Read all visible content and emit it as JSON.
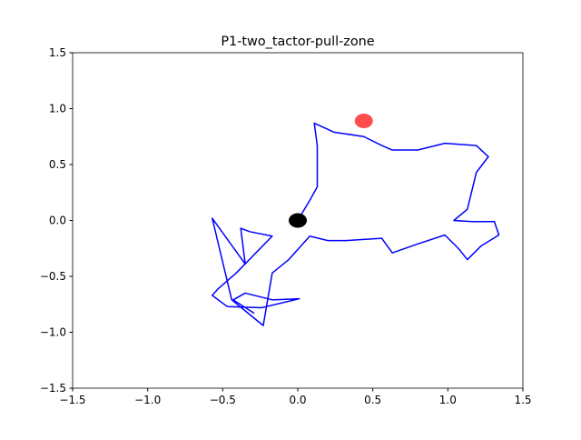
{
  "chart_data": {
    "type": "line",
    "title": "P1-two_tactor-pull-zone",
    "series": [
      {
        "color": "#0000ff",
        "x": [
          0,
          0.08,
          0.13,
          0.13,
          0.11,
          0.24,
          0.44,
          0.56,
          0.63,
          0.8,
          0.98,
          1.19,
          1.27,
          1.19,
          1.13,
          1.04,
          1.16,
          1.31,
          1.34,
          1.22,
          1.13,
          1.07,
          0.98,
          0.8,
          0.63,
          0.56,
          0.32,
          0.2,
          0.08,
          -0.06,
          -0.17,
          -0.23,
          -0.44,
          -0.57,
          -0.35,
          -0.38,
          -0.32,
          -0.17,
          -0.41,
          -0.53,
          -0.57,
          -0.47,
          -0.24,
          0.01,
          -0.17,
          -0.35,
          -0.43,
          -0.29
        ],
        "values": [
          0,
          0.18,
          0.3,
          0.67,
          0.87,
          0.79,
          0.75,
          0.67,
          0.63,
          0.63,
          0.69,
          0.67,
          0.57,
          0.43,
          0.1,
          0,
          -0.01,
          -0.01,
          -0.13,
          -0.23,
          -0.35,
          -0.25,
          -0.13,
          -0.21,
          -0.29,
          -0.16,
          -0.18,
          -0.18,
          -0.14,
          -0.35,
          -0.47,
          -0.94,
          -0.71,
          0.02,
          -0.39,
          -0.07,
          -0.1,
          -0.14,
          -0.47,
          -0.61,
          -0.67,
          -0.77,
          -0.78,
          -0.7,
          -0.71,
          -0.65,
          -0.71,
          -0.83
        ]
      }
    ],
    "points": {
      "x": [
        0.44,
        0
      ],
      "y": [
        0.89,
        0
      ],
      "colors": [
        "#ff0000",
        "#000000"
      ],
      "alpha": [
        0.7,
        1
      ]
    },
    "xlim": [
      -1.5,
      1.5
    ],
    "ylim": [
      -1.5,
      1.5
    ],
    "xticks": [
      {
        "value": -1.5,
        "label": "−1.5"
      },
      {
        "value": -1.0,
        "label": "−1.0"
      },
      {
        "value": -0.5,
        "label": "−0.5"
      },
      {
        "value": 0,
        "label": "0.0"
      },
      0.5,
      {
        "value": 1.0,
        "label": "1.0"
      },
      1.5
    ],
    "yticks": [
      {
        "value": -1.5,
        "label": "−1.5"
      },
      {
        "value": -1.0,
        "label": "−1.0"
      },
      {
        "value": -0.5,
        "label": "−0.5"
      },
      {
        "value": 0,
        "label": "0.0"
      },
      0.5,
      {
        "value": 1.0,
        "label": "1.0"
      },
      1.5
    ]
  }
}
